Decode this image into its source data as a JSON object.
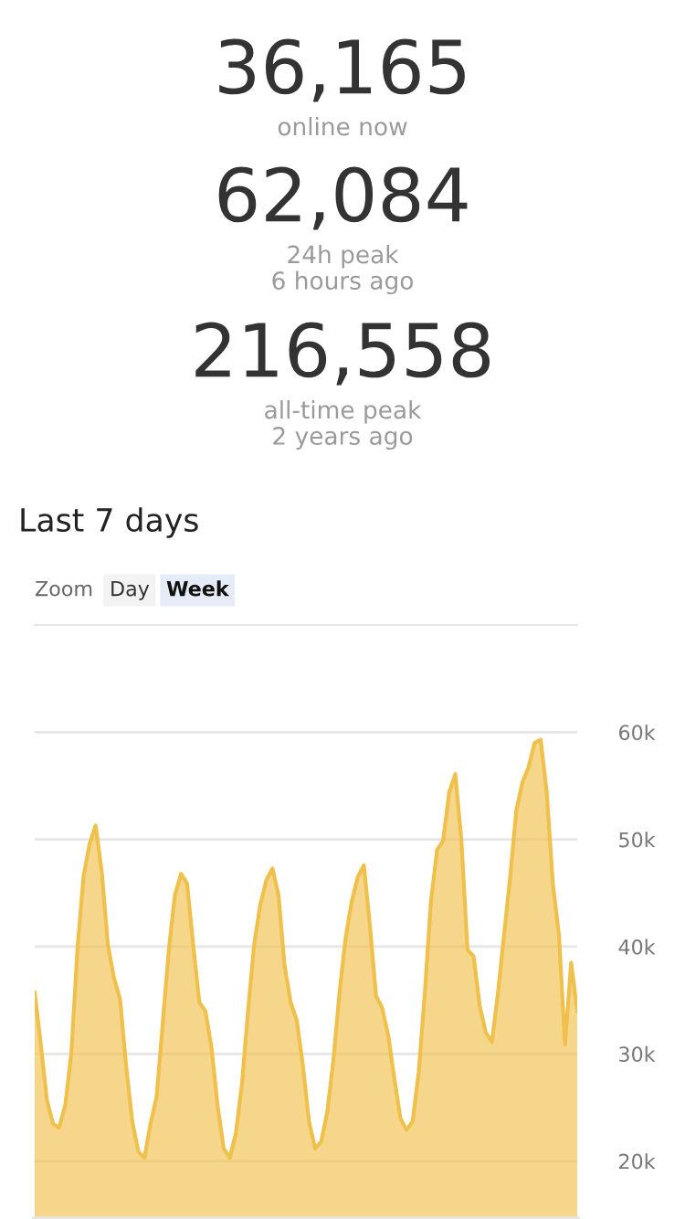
{
  "chart_data": [
    {
      "type": "other",
      "categories": [
        "online now",
        "24h peak\n6 hours ago",
        "all-time peak\n2 years ago"
      ],
      "annotations": [
        "36,165",
        "62,084",
        "216,558"
      ]
    },
    {
      "type": "area",
      "title": "Last 7 days",
      "annotations": [
        "Zoom",
        "Day",
        "Week"
      ],
      "categories": [
        null,
        null,
        null,
        null,
        null,
        null,
        null,
        null,
        null,
        null,
        null,
        null,
        null,
        null,
        null,
        null,
        null,
        null,
        null,
        null,
        null,
        null,
        null,
        null,
        null,
        null,
        null,
        null,
        null,
        null,
        null,
        null,
        null,
        null,
        null,
        null,
        null,
        null,
        null,
        null,
        null,
        null,
        null,
        null,
        null,
        null,
        null,
        null,
        null,
        null,
        null,
        null,
        null,
        null,
        null,
        null,
        null,
        null,
        null,
        null,
        null,
        null,
        null,
        null,
        null,
        null,
        null,
        null,
        null,
        null,
        null,
        null,
        null,
        null,
        null,
        null,
        null,
        null,
        null,
        null,
        null,
        null,
        null,
        null,
        null,
        null,
        null,
        null,
        null,
        null
      ],
      "series": [
        {
          "color": "#f0c04c",
          "values": [
            35700,
            30900,
            25700,
            23500,
            23100,
            25200,
            30000,
            39700,
            46500,
            49600,
            51300,
            47000,
            40200,
            37100,
            35100,
            28900,
            23700,
            20900,
            20300,
            23500,
            26000,
            32800,
            39700,
            44800,
            46800,
            45900,
            40200,
            34800,
            34000,
            30600,
            25200,
            21200,
            20300,
            22600,
            27200,
            34000,
            40200,
            43900,
            46200,
            47300,
            44800,
            38200,
            34800,
            33100,
            28900,
            23700,
            21200,
            21800,
            24600,
            29400,
            35700,
            40800,
            44200,
            46500,
            47600,
            41900,
            35400,
            34300,
            31700,
            27700,
            24000,
            22900,
            23700,
            28300,
            35700,
            44200,
            49000,
            49900,
            54400,
            56100,
            49900,
            39700,
            39100,
            34500,
            32000,
            31100,
            35700,
            41100,
            46500,
            52700,
            55300,
            56700,
            59000,
            59300,
            54400,
            45900,
            41100,
            30900,
            38500,
            34000
          ]
        }
      ],
      "ylim": [
        14600,
        70000
      ],
      "yticks": [
        {
          "value": 20000,
          "label": "20k"
        },
        {
          "value": 30000,
          "label": "30k"
        },
        {
          "value": 40000,
          "label": "40k"
        },
        {
          "value": 50000,
          "label": "50k"
        },
        {
          "value": 60000,
          "label": "60k"
        }
      ],
      "grid": "y",
      "tick_labels": "y",
      "legend": false
    }
  ]
}
